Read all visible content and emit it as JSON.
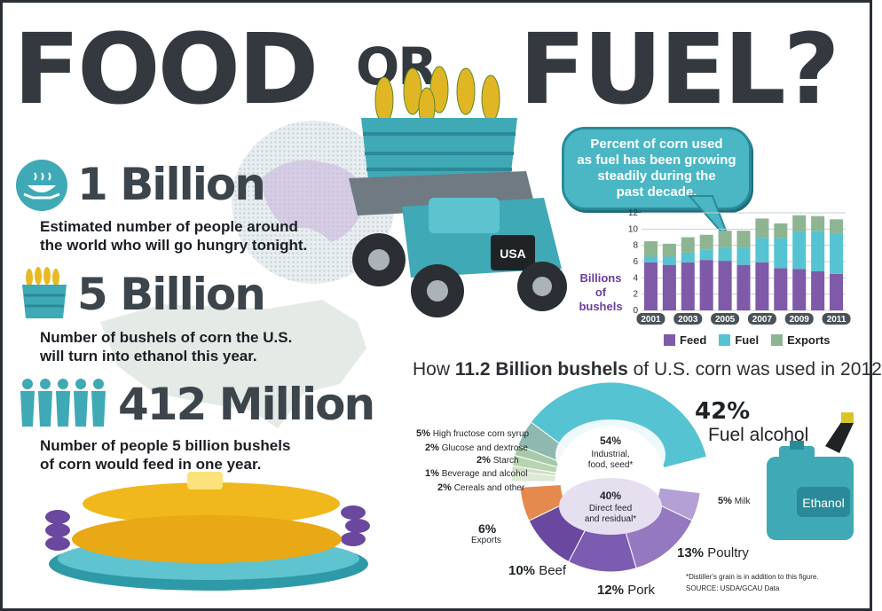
{
  "title": {
    "part1": "FOOD",
    "or": "OR",
    "part2": "FUEL?"
  },
  "stats": [
    {
      "number": "1 Billion",
      "desc1": "Estimated number of people around",
      "desc2": "the world who will go hungry tonight.",
      "icon": "hungry-bowl-icon"
    },
    {
      "number": "5 Billion",
      "desc1": "Number of bushels of corn the U.S.",
      "desc2": "will turn into ethanol this year.",
      "icon": "corn-basket-icon"
    },
    {
      "number": "412 Million",
      "desc1": "Number of people 5 billion bushels",
      "desc2": "of corn would feed in one year.",
      "icon": "people-icon"
    }
  ],
  "truck_label": "USA",
  "bubble_text": [
    "Percent of corn used",
    "as fuel has been growing",
    "steadily during the",
    "past decade."
  ],
  "ethanol_label": "Ethanol",
  "colors": {
    "feed": "#7f5aa8",
    "fuel": "#56c3d2",
    "exports": "#8eb592",
    "teal": "#3fa9b6",
    "dark": "#33393f"
  },
  "chart_data": [
    {
      "type": "bar",
      "stacked": true,
      "ylabel": [
        "Billions",
        "of",
        "bushels"
      ],
      "ylim": [
        0,
        12
      ],
      "yticks": [
        0,
        2,
        4,
        6,
        8,
        10,
        12
      ],
      "categories": [
        "2001",
        "2002",
        "2003",
        "2004",
        "2005",
        "2006",
        "2007",
        "2008",
        "2009",
        "2010",
        "2011"
      ],
      "tick_labels": [
        "2001",
        "2003",
        "2005",
        "2007",
        "2009",
        "2011"
      ],
      "series": [
        {
          "name": "Feed",
          "color": "#7f5aa8",
          "values": [
            5.9,
            5.6,
            5.9,
            6.2,
            6.1,
            5.6,
            5.9,
            5.2,
            5.1,
            4.8,
            4.5
          ]
        },
        {
          "name": "Fuel",
          "color": "#56c3d2",
          "values": [
            0.7,
            1.0,
            1.2,
            1.3,
            1.6,
            2.1,
            3.0,
            3.7,
            4.6,
            5.0,
            5.0
          ]
        },
        {
          "name": "Exports",
          "color": "#8eb592",
          "values": [
            1.9,
            1.6,
            1.9,
            1.8,
            2.1,
            2.1,
            2.4,
            1.8,
            2.0,
            1.8,
            1.7
          ]
        }
      ],
      "legend": "bottom"
    },
    {
      "type": "pie",
      "heading_prefix": "How ",
      "heading_bold": "11.2 Billion bushels",
      "heading_suffix": " of U.S. corn was used in 2012",
      "inner_top": {
        "pct": "54%",
        "line1": "Industrial,",
        "line2": "food, seed*"
      },
      "inner_bottom": {
        "pct": "40%",
        "line1": "Direct feed",
        "line2": "and residual*"
      },
      "slices": [
        {
          "pct": "42%",
          "label": "Fuel alcohol",
          "value": 42,
          "color": "#56c3d2"
        },
        {
          "pct": "5%",
          "label": "High fructose corn syrup",
          "value": 5,
          "color": "#8fb8b0"
        },
        {
          "pct": "2%",
          "label": "Glucose and dextrose",
          "value": 2,
          "color": "#a6c9a7"
        },
        {
          "pct": "2%",
          "label": "Starch",
          "value": 2,
          "color": "#b8d4b0"
        },
        {
          "pct": "1%",
          "label": "Beverage and alcohol",
          "value": 1,
          "color": "#cde0c5"
        },
        {
          "pct": "2%",
          "label": "Cereals and other",
          "value": 2,
          "color": "#dce9d4"
        },
        {
          "pct": "6%",
          "label": "Exports",
          "value": 6,
          "color": "#e58a4e"
        },
        {
          "pct": "10%",
          "label": "Beef",
          "value": 10,
          "color": "#6a48a0"
        },
        {
          "pct": "12%",
          "label": "Pork",
          "value": 12,
          "color": "#7b5cb0"
        },
        {
          "pct": "13%",
          "label": "Poultry",
          "value": 13,
          "color": "#9478c0"
        },
        {
          "pct": "5%",
          "label": "Milk",
          "value": 5,
          "color": "#b4a0d4"
        }
      ],
      "footnote": "*Distiller's grain is in addition to this figure.",
      "source": "SOURCE: USDA/GCAU Data"
    }
  ]
}
